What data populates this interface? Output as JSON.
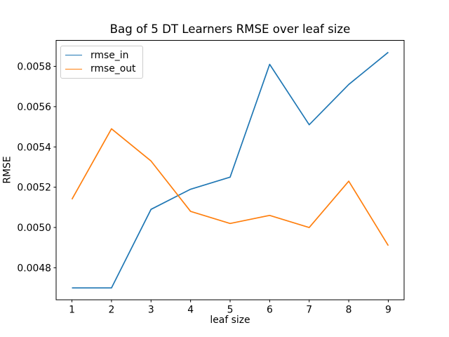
{
  "chart_data": {
    "type": "line",
    "title": "Bag of 5 DT Learners RMSE over leaf size",
    "xlabel": "leaf size",
    "ylabel": "RMSE",
    "x": [
      1,
      2,
      3,
      4,
      5,
      6,
      7,
      8,
      9
    ],
    "series": [
      {
        "name": "rmse_in",
        "color": "#1f77b4",
        "values": [
          0.0047,
          0.0047,
          0.00509,
          0.00519,
          0.00525,
          0.00581,
          0.00551,
          0.00571,
          0.00587
        ]
      },
      {
        "name": "rmse_out",
        "color": "#ff7f0e",
        "values": [
          0.00514,
          0.00549,
          0.00533,
          0.00508,
          0.00502,
          0.00506,
          0.005,
          0.00523,
          0.00491
        ]
      }
    ],
    "xlim": [
      0.6,
      9.4
    ],
    "ylim": [
      0.004641,
      0.005929
    ],
    "xticks": {
      "values": [
        1,
        2,
        3,
        4,
        5,
        6,
        7,
        8,
        9
      ],
      "labels": [
        "1",
        "2",
        "3",
        "4",
        "5",
        "6",
        "7",
        "8",
        "9"
      ]
    },
    "yticks": {
      "values": [
        0.0048,
        0.005,
        0.0052,
        0.0054,
        0.0056,
        0.0058
      ],
      "labels": [
        "0.0048",
        "0.0050",
        "0.0052",
        "0.0054",
        "0.0056",
        "0.0058"
      ]
    },
    "grid": false,
    "legend": {
      "position": "upper left",
      "entries": [
        "rmse_in",
        "rmse_out"
      ]
    }
  }
}
